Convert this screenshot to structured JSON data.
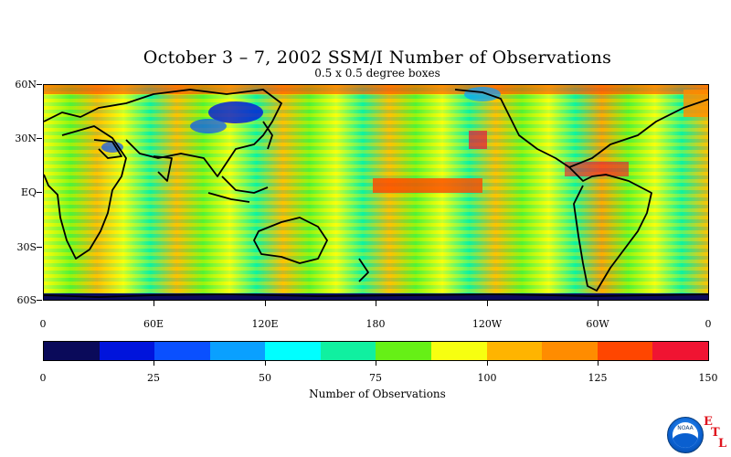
{
  "title": "October 3 – 7, 2002 SSM/I Number of Observations",
  "subtitle": "0.5 x 0.5 degree boxes",
  "map": {
    "lat_labels": [
      "60N",
      "30N",
      "EQ",
      "30S",
      "60S"
    ],
    "lon_labels": [
      "0",
      "60E",
      "120E",
      "180",
      "120W",
      "60W",
      "0"
    ]
  },
  "colorbar": {
    "colors": [
      "#0a0a5a",
      "#0014dc",
      "#0a50ff",
      "#0aa0ff",
      "#00ffff",
      "#10f0a0",
      "#66f016",
      "#f7ff10",
      "#ffb400",
      "#ff8c00",
      "#ff4600",
      "#f01432"
    ],
    "tick_labels": [
      "0",
      "25",
      "50",
      "75",
      "100",
      "125",
      "150"
    ],
    "title": "Number of Observations",
    "range": [
      0,
      150
    ]
  },
  "logo": {
    "text": "NOAA",
    "letters": [
      "E",
      "T",
      "L"
    ]
  }
}
